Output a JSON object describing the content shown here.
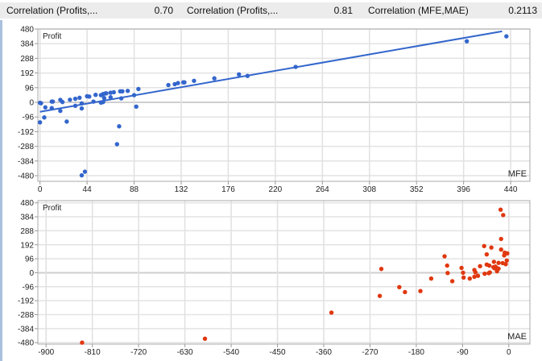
{
  "header": {
    "stats": [
      {
        "label": "Correlation (Profits,...",
        "value": "0.70"
      },
      {
        "label": "Correlation (Profits,...",
        "value": "0.81"
      },
      {
        "label": "Correlation (MFE,MAE)",
        "value": "0.2113"
      }
    ]
  },
  "chart_data": [
    {
      "type": "scatter",
      "ylabel": "Profit",
      "xlabel": "MFE",
      "color": "#3366cc",
      "xlim": [
        -2,
        458
      ],
      "ylim": [
        -517,
        480
      ],
      "xticks": [
        0,
        44,
        88,
        132,
        176,
        220,
        264,
        308,
        352,
        396,
        440
      ],
      "yticks": [
        480,
        384,
        288,
        192,
        96,
        0,
        -96,
        -192,
        -288,
        -384,
        -480
      ],
      "grid": true,
      "trendline": {
        "intercept": -62,
        "slope": 1.22,
        "x_end": 432
      },
      "points": [
        [
          0,
          -3
        ],
        [
          1,
          -6
        ],
        [
          0,
          -131
        ],
        [
          4,
          -99
        ],
        [
          5,
          -33
        ],
        [
          11,
          5
        ],
        [
          12,
          5
        ],
        [
          11,
          -38
        ],
        [
          19,
          16
        ],
        [
          19,
          -56
        ],
        [
          21,
          2
        ],
        [
          25,
          -126
        ],
        [
          28,
          17
        ],
        [
          33,
          23
        ],
        [
          33,
          -23
        ],
        [
          37,
          30
        ],
        [
          39,
          -7
        ],
        [
          39,
          -40
        ],
        [
          39,
          -478
        ],
        [
          42,
          -454
        ],
        [
          44,
          40
        ],
        [
          46,
          38
        ],
        [
          50,
          5
        ],
        [
          52,
          49
        ],
        [
          57,
          47
        ],
        [
          57,
          -2
        ],
        [
          59,
          54
        ],
        [
          60,
          28
        ],
        [
          59,
          2
        ],
        [
          61,
          58
        ],
        [
          62,
          59
        ],
        [
          66,
          63
        ],
        [
          66,
          33
        ],
        [
          69,
          66
        ],
        [
          72,
          -274
        ],
        [
          74,
          -157
        ],
        [
          75,
          72
        ],
        [
          77,
          72
        ],
        [
          76,
          26
        ],
        [
          82,
          75
        ],
        [
          88,
          47
        ],
        [
          90,
          -28
        ],
        [
          92,
          87
        ],
        [
          120,
          113
        ],
        [
          126,
          119
        ],
        [
          129,
          126
        ],
        [
          134,
          131
        ],
        [
          135,
          131
        ],
        [
          144,
          141
        ],
        [
          163,
          157
        ],
        [
          186,
          183
        ],
        [
          194,
          173
        ],
        [
          239,
          232
        ],
        [
          399,
          400
        ],
        [
          436,
          432
        ]
      ]
    },
    {
      "type": "scatter",
      "ylabel": "Profit",
      "xlabel": "MAE",
      "color": "#e0380f",
      "xlim": [
        -916,
        41
      ],
      "ylim": [
        -490,
        495
      ],
      "xticks": [
        -900,
        -810,
        -720,
        -630,
        -540,
        -450,
        -360,
        -270,
        -180,
        -90,
        0
      ],
      "yticks": [
        480,
        384,
        288,
        192,
        96,
        0,
        -96,
        -192,
        -288,
        -384,
        -480
      ],
      "grid": true,
      "points": [
        [
          -16,
          433
        ],
        [
          -11,
          396
        ],
        [
          -15,
          232
        ],
        [
          -48,
          183
        ],
        [
          -34,
          173
        ],
        [
          -15,
          159
        ],
        [
          -43,
          126
        ],
        [
          -8,
          138
        ],
        [
          -3,
          133
        ],
        [
          -9,
          119
        ],
        [
          -125,
          113
        ],
        [
          -120,
          49
        ],
        [
          -119,
          -2
        ],
        [
          -110,
          -58
        ],
        [
          -92,
          33
        ],
        [
          -89,
          0
        ],
        [
          -88,
          -33
        ],
        [
          -76,
          -40
        ],
        [
          -67,
          19
        ],
        [
          -65,
          3
        ],
        [
          -67,
          -28
        ],
        [
          -60,
          -21
        ],
        [
          -56,
          45
        ],
        [
          -47,
          -7
        ],
        [
          -43,
          56
        ],
        [
          -38,
          49
        ],
        [
          -37,
          2
        ],
        [
          -39,
          -3
        ],
        [
          -29,
          75
        ],
        [
          -20,
          68
        ],
        [
          -12,
          66
        ],
        [
          -4,
          84
        ],
        [
          -6,
          59
        ],
        [
          -30,
          38
        ],
        [
          -26,
          42
        ],
        [
          -22,
          30
        ],
        [
          -20,
          28
        ],
        [
          -23,
          10
        ],
        [
          -28,
          31
        ],
        [
          -248,
          26
        ],
        [
          -251,
          -159
        ],
        [
          -213,
          -99
        ],
        [
          -202,
          -133
        ],
        [
          -172,
          -126
        ],
        [
          -151,
          -40
        ],
        [
          -345,
          -274
        ],
        [
          -830,
          -480
        ],
        [
          -591,
          -453
        ]
      ]
    }
  ]
}
